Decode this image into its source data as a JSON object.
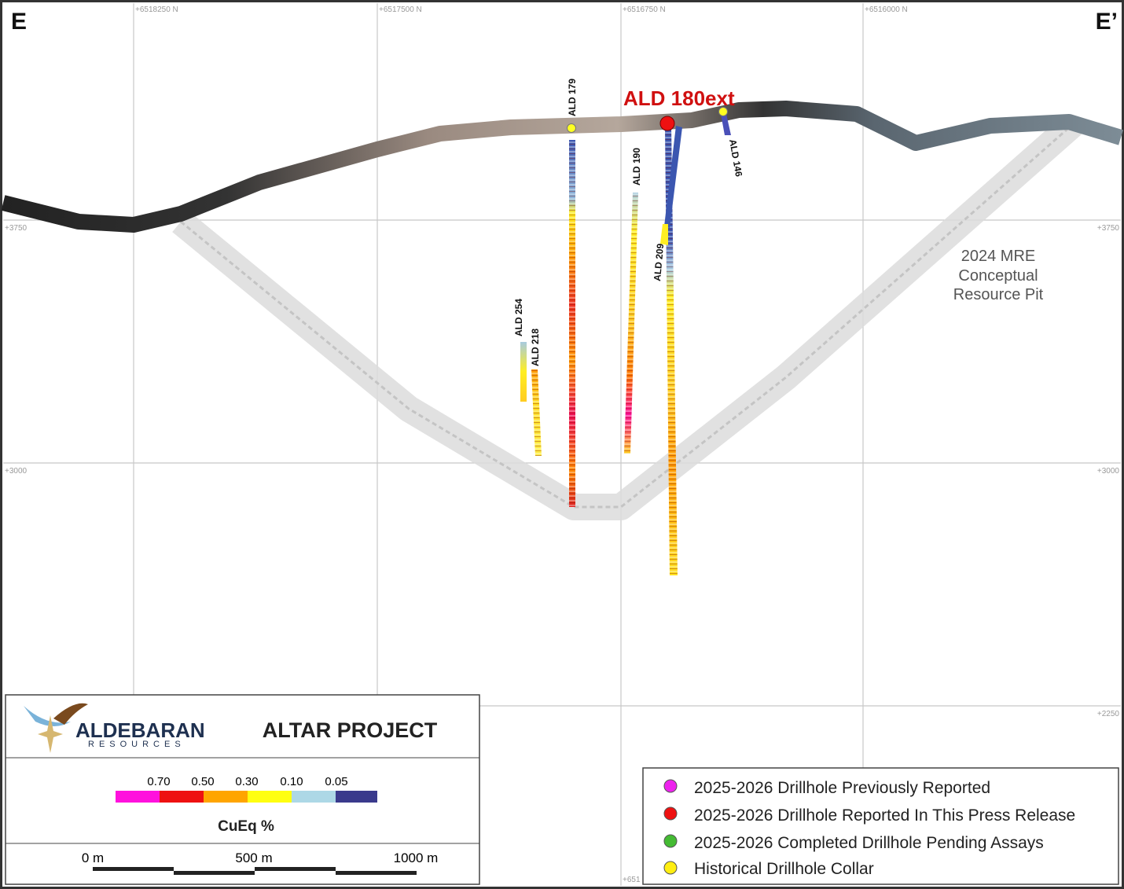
{
  "section": {
    "left_label": "E",
    "right_label": "E’"
  },
  "grid": {
    "x_labels": [
      "+6518250 N",
      "+6517500 N",
      "+6516750 N",
      "+6516000 N"
    ],
    "y_labels": [
      "+3750",
      "+3000",
      "+2250"
    ],
    "bottom_label": "+651"
  },
  "drillholes": {
    "highlight": "ALD 180ext",
    "labels": [
      "ALD 179",
      "ALD 146",
      "ALD 190",
      "ALD 209",
      "ALD 254",
      "ALD 218"
    ]
  },
  "pit_label": [
    "2024 MRE",
    "Conceptual",
    "Resource Pit"
  ],
  "title_block": {
    "company": "ALDEBARAN",
    "company_sub": "RESOURCES",
    "project": "ALTAR PROJECT"
  },
  "color_scale": {
    "labels": [
      "0.70",
      "0.50",
      "0.30",
      "0.10",
      "0.05"
    ],
    "title": "CuEq %"
  },
  "scale_bar": {
    "labels": [
      "0 m",
      "500 m",
      "1000 m"
    ]
  },
  "legend": [
    "2025-2026 Drillhole Previously Reported",
    "2025-2026 Drillhole Reported In This Press Release",
    "2025-2026 Completed Drillhole Pending Assays",
    "Historical Drillhole Collar"
  ]
}
